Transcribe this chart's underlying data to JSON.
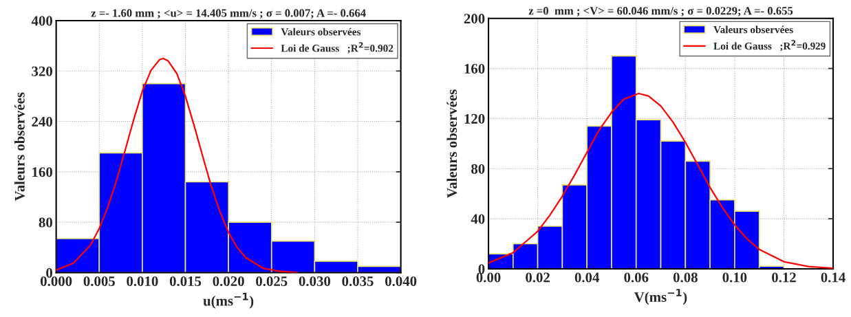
{
  "chart_data": [
    {
      "type": "histogram",
      "title": "z =- 1.60 mm ; <u> = 14.405 mm/s ; σ = 0.007; A =- 0.664",
      "xlabel": "u(ms$^{−1}$)",
      "ylabel": "Valeurs observées",
      "bins": [
        0.0,
        0.005,
        0.01,
        0.015,
        0.02,
        0.025,
        0.03,
        0.035,
        0.04
      ],
      "series": [
        {
          "name": "Valeurs observées",
          "color": "#0000ff",
          "values": [
            54,
            190,
            300,
            144,
            80,
            50,
            18,
            10
          ]
        },
        {
          "name": "Loi de Gauss   ;R$^{2}$=0.902",
          "type": "line",
          "color": "#ff0000",
          "x": [
            0.0,
            0.002,
            0.004,
            0.005,
            0.006,
            0.007,
            0.008,
            0.009,
            0.01,
            0.011,
            0.012,
            0.0124,
            0.013,
            0.014,
            0.015,
            0.016,
            0.017,
            0.018,
            0.019,
            0.02,
            0.021,
            0.022,
            0.024,
            0.026,
            0.028
          ],
          "values": [
            4,
            15,
            44,
            70,
            104,
            146,
            194,
            243,
            288,
            321,
            338,
            340,
            336,
            316,
            280,
            234,
            185,
            137,
            97,
            64,
            40,
            24,
            7,
            2,
            0
          ]
        }
      ],
      "xlim": [
        0.0,
        0.04
      ],
      "xticks": [
        {
          "value": 0.0,
          "label": "0.000"
        },
        {
          "value": 0.005,
          "label": "0.005"
        },
        {
          "value": 0.01,
          "label": "0.010"
        },
        {
          "value": 0.015,
          "label": "0.015"
        },
        {
          "value": 0.02,
          "label": "0.020"
        },
        {
          "value": 0.025,
          "label": "0.025"
        },
        {
          "value": 0.03,
          "label": "0.030"
        },
        {
          "value": 0.035,
          "label": "0.035"
        },
        {
          "value": 0.04,
          "label": "0.040"
        }
      ],
      "ylim": [
        0,
        400
      ],
      "yticks": [
        0,
        80,
        160,
        240,
        320,
        400
      ],
      "grid": true,
      "legend": "top right"
    },
    {
      "type": "histogram",
      "title": "z =0  mm ; <V> = 60.046 mm/s ; σ = 0.0229; A =- 0.655",
      "xlabel": "V(ms$^{−1}$)",
      "ylabel": "Valeurs observées",
      "bins": [
        0.0,
        0.01,
        0.02,
        0.03,
        0.04,
        0.05,
        0.06,
        0.07,
        0.08,
        0.09,
        0.1,
        0.11,
        0.12
      ],
      "series": [
        {
          "name": "Valeurs observées",
          "color": "#0000ff",
          "values": [
            12,
            20,
            34,
            67,
            114,
            170,
            119,
            102,
            86,
            55,
            46,
            2
          ]
        },
        {
          "name": "Loi de Gauss   ;R$^{2}$=0.929",
          "type": "line",
          "color": "#ff0000",
          "x": [
            0.0,
            0.01,
            0.02,
            0.025,
            0.03,
            0.035,
            0.04,
            0.045,
            0.05,
            0.055,
            0.061,
            0.065,
            0.07,
            0.075,
            0.08,
            0.085,
            0.09,
            0.095,
            0.1,
            0.105,
            0.11,
            0.12,
            0.13,
            0.14
          ],
          "values": [
            4.6,
            12.9,
            30,
            43,
            58,
            75,
            93,
            111,
            125,
            135.5,
            140,
            138,
            130,
            117,
            101,
            83,
            65,
            49,
            35,
            24,
            15.5,
            5.7,
            1.8,
            0.5
          ]
        }
      ],
      "xlim": [
        0.0,
        0.14
      ],
      "xticks": [
        {
          "value": 0.0,
          "label": "0.00"
        },
        {
          "value": 0.02,
          "label": "0.02"
        },
        {
          "value": 0.04,
          "label": "0.04"
        },
        {
          "value": 0.06,
          "label": "0.06"
        },
        {
          "value": 0.08,
          "label": "0.08"
        },
        {
          "value": 0.1,
          "label": "0.10"
        },
        {
          "value": 0.12,
          "label": "0.12"
        },
        {
          "value": 0.14,
          "label": "0.14"
        }
      ],
      "ylim": [
        0,
        200
      ],
      "yticks": [
        0,
        40,
        80,
        120,
        160,
        200
      ],
      "grid": true,
      "legend": "top right"
    }
  ]
}
